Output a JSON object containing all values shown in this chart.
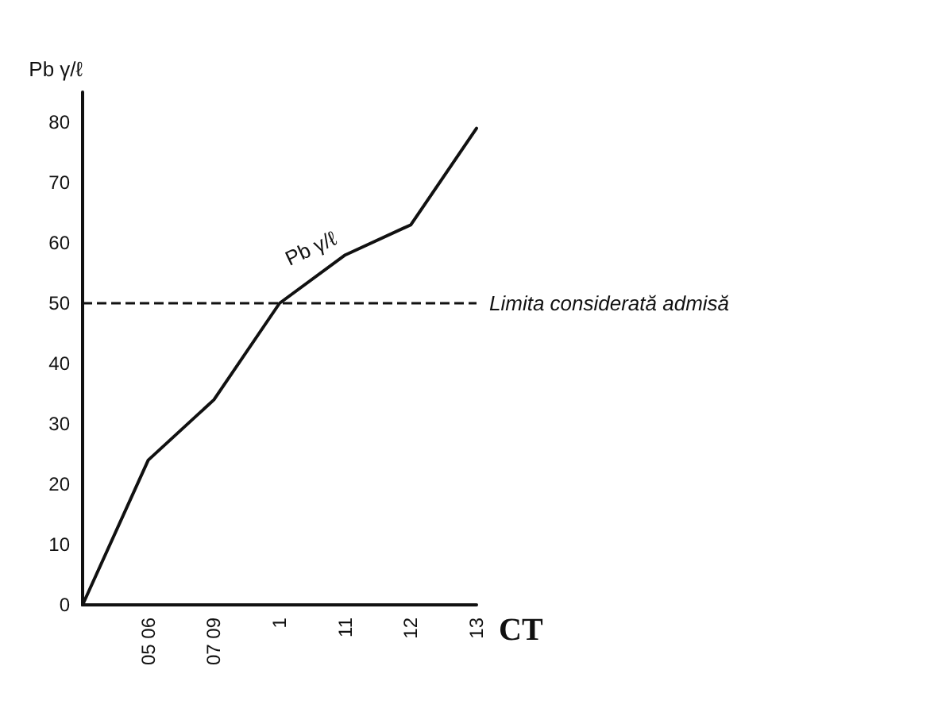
{
  "chart_data": {
    "type": "line",
    "ylabel": "Pb γ/ℓ",
    "xlabel": "CT",
    "categories": [
      null,
      "05 06",
      "07 09",
      "1",
      "11",
      "12",
      "13"
    ],
    "series": [
      {
        "name": "Pb γ/ℓ",
        "color": "#111111",
        "values": [
          0,
          24,
          34,
          50,
          58,
          63,
          79
        ]
      }
    ],
    "ylim": [
      0,
      85
    ],
    "yticks": [
      0,
      10,
      20,
      30,
      40,
      50,
      60,
      70,
      80
    ],
    "ref_lines": [
      {
        "axis": "y",
        "value": 50,
        "label": "Limita considerată admisă",
        "line_style": "dashed",
        "color": "#111111"
      }
    ],
    "grid": false,
    "legend": false,
    "marker": "none",
    "line_style": "solid"
  }
}
